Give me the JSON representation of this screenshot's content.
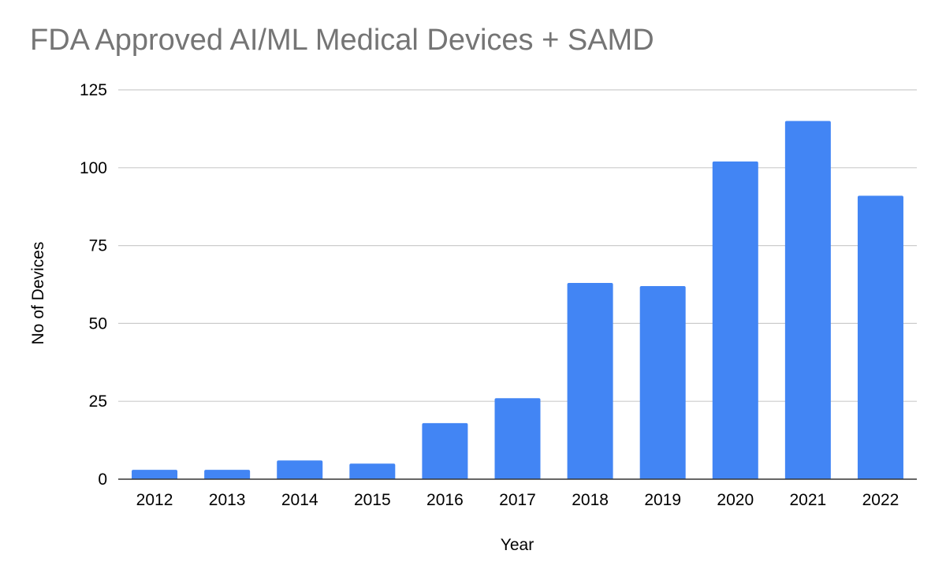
{
  "chart_data": {
    "type": "bar",
    "title": "FDA Approved AI/ML Medical Devices + SAMD",
    "xlabel": "Year",
    "ylabel": "No of Devices",
    "categories": [
      "2012",
      "2013",
      "2014",
      "2015",
      "2016",
      "2017",
      "2018",
      "2019",
      "2020",
      "2021",
      "2022"
    ],
    "series": [
      {
        "name": "No of Devices",
        "values": [
          3,
          3,
          6,
          5,
          18,
          26,
          63,
          62,
          102,
          115,
          91
        ]
      }
    ],
    "ylim": [
      0,
      125
    ],
    "yticks": [
      0,
      25,
      50,
      75,
      100,
      125
    ],
    "grid": true,
    "legend": "none",
    "colors": {
      "bar": "#4285f4",
      "grid": "#cccccc",
      "axis": "#333333",
      "title": "#757575"
    }
  }
}
